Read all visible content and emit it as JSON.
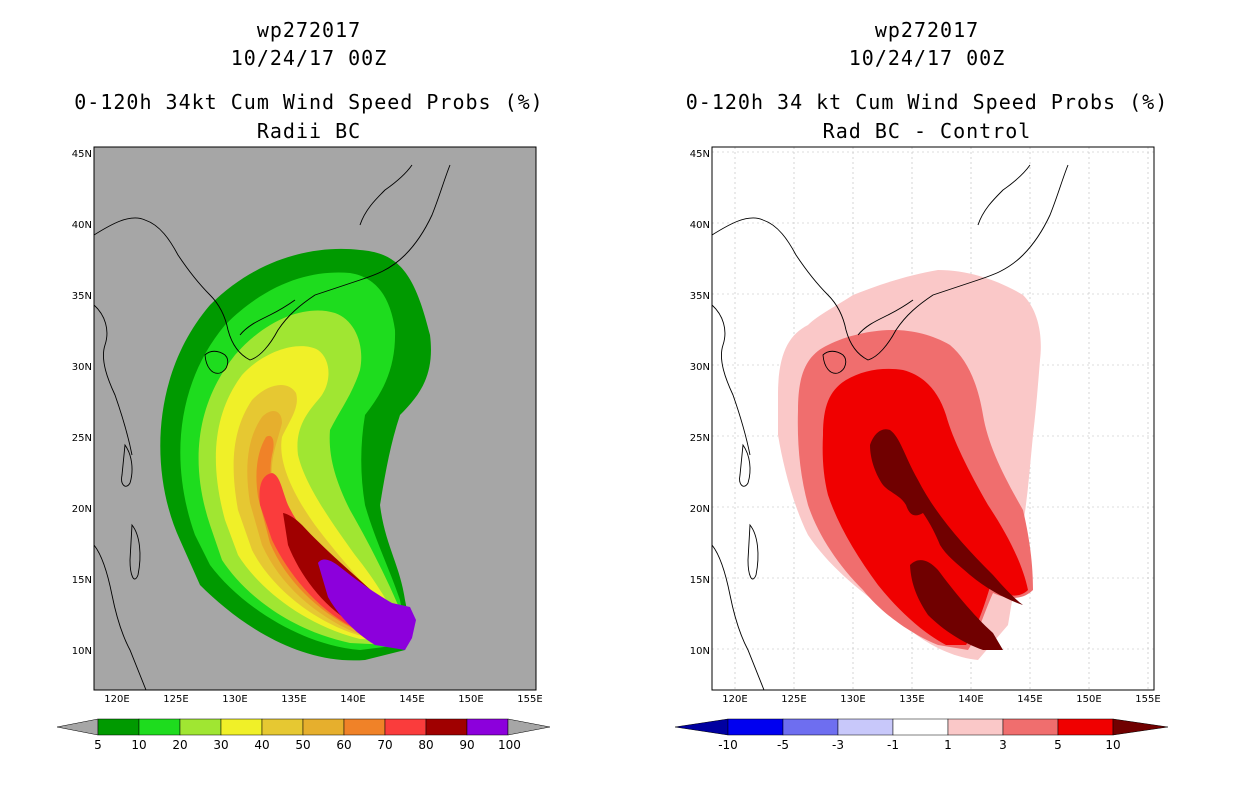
{
  "left_panel": {
    "title_storm": "wp272017",
    "title_time": "10/24/17 00Z",
    "title_product": "0-120h 34kt Cum Wind Speed Probs (%)",
    "title_sub": "Radii BC",
    "background_color": "#a6a6a6",
    "lat_ticks": [
      "45N",
      "40N",
      "35N",
      "30N",
      "25N",
      "20N",
      "15N",
      "10N"
    ],
    "lon_ticks": [
      "120E",
      "125E",
      "130E",
      "135E",
      "140E",
      "145E",
      "150E",
      "155E"
    ],
    "colorbar": {
      "colors": [
        "#009a00",
        "#1edc1e",
        "#a0e632",
        "#f0f028",
        "#e6c832",
        "#e6af2d",
        "#f08228",
        "#fa3c3c",
        "#a00000",
        "#8c00dc"
      ],
      "labels": [
        "5",
        "10",
        "20",
        "30",
        "40",
        "50",
        "60",
        "70",
        "80",
        "90",
        "100"
      ]
    }
  },
  "right_panel": {
    "title_storm": "wp272017",
    "title_time": "10/24/17 00Z",
    "title_product": "0-120h 34 kt Cum Wind Speed Probs (%)",
    "title_sub": "Rad BC - Control",
    "background_color": "#ffffff",
    "lat_ticks": [
      "45N",
      "40N",
      "35N",
      "30N",
      "25N",
      "20N",
      "15N",
      "10N"
    ],
    "lon_ticks": [
      "120E",
      "125E",
      "130E",
      "135E",
      "140E",
      "145E",
      "150E",
      "155E"
    ],
    "colorbar": {
      "colors": [
        "#0000a0",
        "#0000f0",
        "#6e6ef0",
        "#c8c8fa",
        "#ffffff",
        "#fac8c8",
        "#f06e6e",
        "#f00000",
        "#700000"
      ],
      "labels": [
        "-10",
        "-5",
        "-3",
        "-1",
        "1",
        "3",
        "5",
        "10"
      ]
    }
  }
}
